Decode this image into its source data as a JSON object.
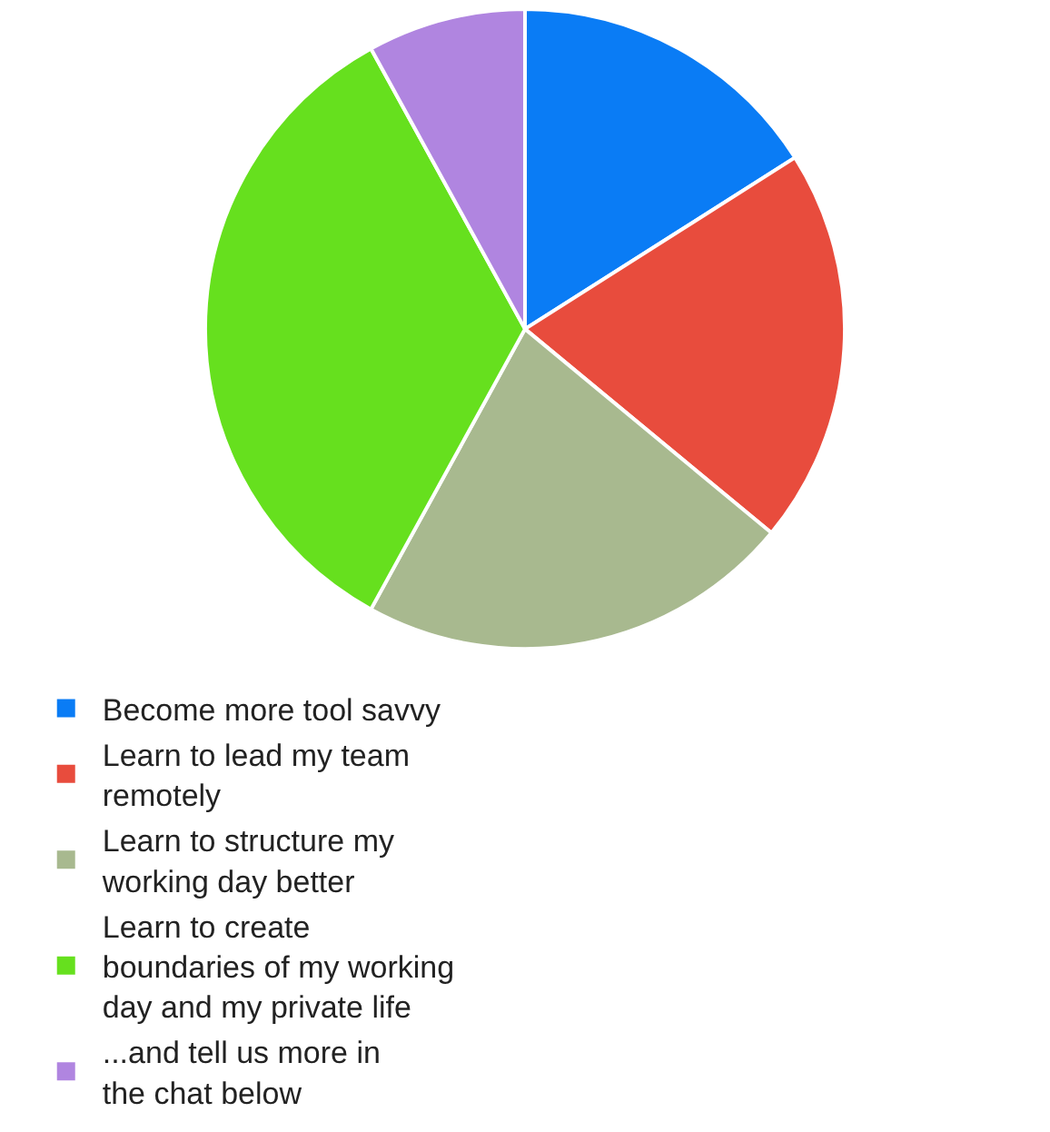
{
  "chart_data": {
    "type": "pie",
    "categories": [
      "Become more tool savvy",
      "Learn to lead my team remotely",
      "Learn to structure my working day better",
      "Learn to create boundaries of my working day and my private life",
      "...and tell us more in the chat below"
    ],
    "values": [
      16,
      20,
      22,
      34,
      8
    ],
    "colors": [
      "#0a7cf5",
      "#e84c3d",
      "#a8b98f",
      "#66e01e",
      "#b085e0"
    ],
    "legend": "bottom"
  }
}
